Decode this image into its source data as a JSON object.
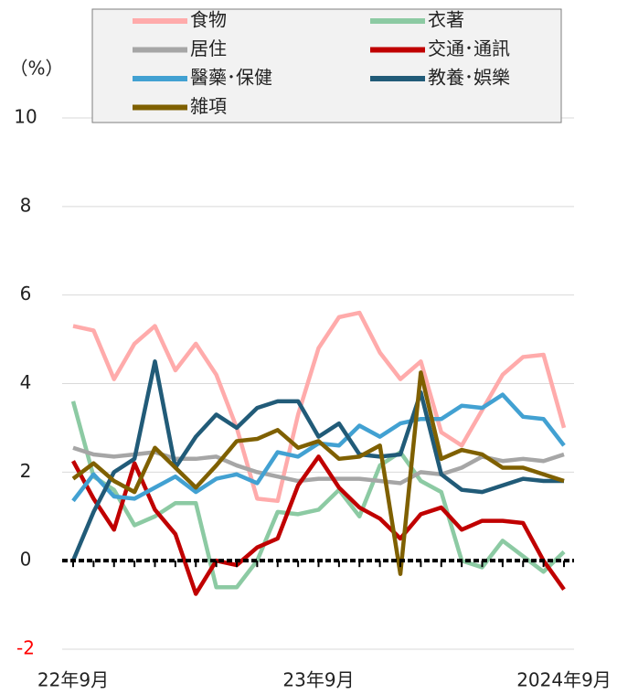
{
  "chart_data": {
    "type": "line",
    "y_label": "（%）",
    "categories": [
      "22年9月",
      null,
      null,
      null,
      null,
      null,
      null,
      null,
      null,
      null,
      null,
      null,
      "23年9月",
      null,
      null,
      null,
      null,
      null,
      null,
      null,
      null,
      null,
      null,
      null,
      "2024年9月"
    ],
    "ylim": [
      -2,
      10
    ],
    "yticks": [
      10,
      8,
      6,
      4,
      2,
      0,
      -2
    ],
    "grid": true,
    "negative_tick_color": "#ff0000",
    "zero_line_color": "#000000",
    "legend": "top",
    "series": [
      {
        "name": "食物",
        "color": "#ffabab",
        "values": [
          5.3,
          5.2,
          4.1,
          4.9,
          5.3,
          4.3,
          4.9,
          4.2,
          3.0,
          1.4,
          1.35,
          3.3,
          4.8,
          5.5,
          5.6,
          4.7,
          4.1,
          4.5,
          2.9,
          2.6,
          3.4,
          4.2,
          4.6,
          4.65,
          3.0
        ]
      },
      {
        "name": "衣著",
        "color": "#8ccaa3",
        "values": [
          3.6,
          1.9,
          1.6,
          0.8,
          1.0,
          1.3,
          1.3,
          -0.6,
          -0.6,
          0.0,
          1.1,
          1.05,
          1.15,
          1.6,
          1.0,
          2.15,
          2.45,
          1.8,
          1.55,
          0.0,
          -0.15,
          0.45,
          0.1,
          -0.25,
          0.2
        ]
      },
      {
        "name": "居住",
        "color": "#a6a6a6",
        "values": [
          2.55,
          2.4,
          2.35,
          2.4,
          2.45,
          2.3,
          2.3,
          2.35,
          2.15,
          2.0,
          1.9,
          1.8,
          1.85,
          1.85,
          1.85,
          1.8,
          1.75,
          2.0,
          1.95,
          2.1,
          2.35,
          2.25,
          2.3,
          2.25,
          2.4
        ]
      },
      {
        "name": "交通･通訊",
        "color": "#c00000",
        "values": [
          2.25,
          1.4,
          0.7,
          2.2,
          1.15,
          0.6,
          -0.75,
          0.0,
          -0.1,
          0.3,
          0.5,
          1.7,
          2.35,
          1.65,
          1.2,
          0.95,
          0.5,
          1.05,
          1.2,
          0.7,
          0.9,
          0.9,
          0.85,
          0.0,
          -0.65
        ]
      },
      {
        "name": "醫藥･保健",
        "color": "#42a1d2",
        "values": [
          1.35,
          1.95,
          1.45,
          1.4,
          1.65,
          1.9,
          1.55,
          1.85,
          1.95,
          1.75,
          2.45,
          2.35,
          2.65,
          2.6,
          3.05,
          2.8,
          3.1,
          3.2,
          3.2,
          3.5,
          3.45,
          3.75,
          3.25,
          3.2,
          2.6
        ]
      },
      {
        "name": "教養･娯樂",
        "color": "#215b78",
        "values": [
          0.0,
          1.1,
          2.0,
          2.3,
          4.5,
          2.1,
          2.8,
          3.3,
          3.0,
          3.45,
          3.6,
          3.6,
          2.8,
          3.1,
          2.4,
          2.35,
          2.4,
          3.8,
          1.95,
          1.6,
          1.55,
          1.7,
          1.85,
          1.8,
          1.8
        ]
      },
      {
        "name": "雑項",
        "color": "#7f6000",
        "values": [
          1.85,
          2.2,
          1.8,
          1.55,
          2.55,
          2.1,
          1.65,
          2.15,
          2.7,
          2.75,
          2.95,
          2.55,
          2.7,
          2.3,
          2.35,
          2.6,
          -0.3,
          4.25,
          2.3,
          2.5,
          2.4,
          2.1,
          2.1,
          1.95,
          1.8
        ]
      }
    ]
  }
}
